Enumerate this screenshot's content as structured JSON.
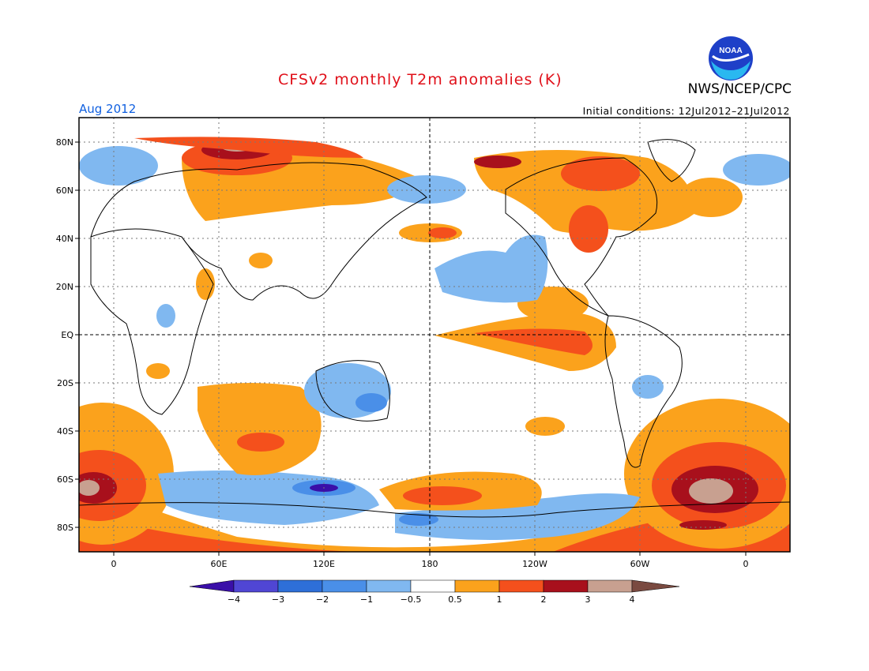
{
  "header": {
    "title": "CFSv2 monthly T2m anomalies (K)",
    "agency": "NWS/NCEP/CPC",
    "valid_month": "Aug 2012",
    "initial_conditions": "Initial conditions: 12Jul2012–21Jul2012",
    "logo_text": "NOAA"
  },
  "axes": {
    "lat_labels": [
      "80N",
      "60N",
      "40N",
      "20N",
      "EQ",
      "20S",
      "40S",
      "60S",
      "80S"
    ],
    "lon_labels": [
      "0",
      "60E",
      "120E",
      "180",
      "120W",
      "60W",
      "0"
    ]
  },
  "colorbar": {
    "labels": [
      "−4",
      "−3",
      "−2",
      "−1",
      "−0.5",
      "0.5",
      "1",
      "2",
      "3",
      "4"
    ],
    "colors": [
      "#3a0fa8",
      "#5046d4",
      "#2e6fd8",
      "#4a8fe8",
      "#80b8f0",
      "#ffffff",
      "#fba21c",
      "#f4501c",
      "#a8101c",
      "#c8a090",
      "#7a4a40"
    ]
  },
  "colors": {
    "title": "#e0101a",
    "valid_month": "#1060e0",
    "land_outline": "#000000"
  }
}
